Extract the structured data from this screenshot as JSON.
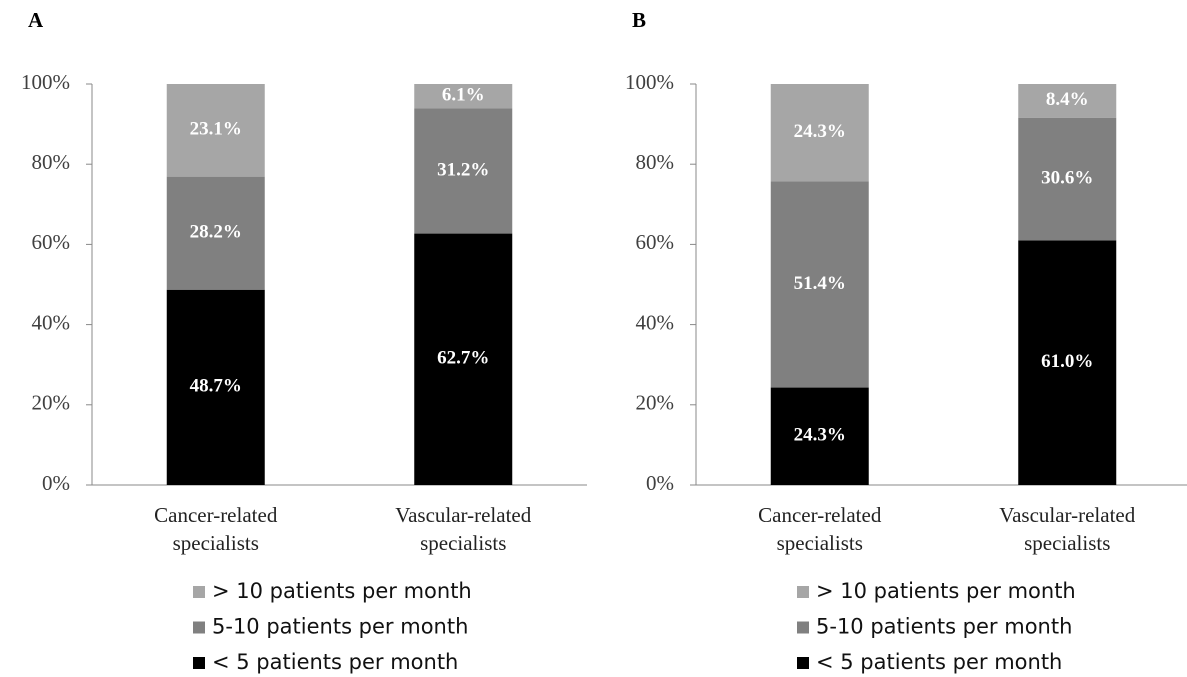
{
  "chart_data": [
    {
      "type": "stacked_bar",
      "title": "A",
      "categories": [
        "Cancer-related specialists",
        "Vascular-related specialists"
      ],
      "series": [
        {
          "name": "< 5 patients per month",
          "color": "#000000",
          "values": [
            48.7,
            62.7
          ],
          "value_labels": [
            "48.7%",
            "62.7%"
          ]
        },
        {
          "name": "5-10 patients per month",
          "color": "#808080",
          "values": [
            28.2,
            31.2
          ],
          "value_labels": [
            "28.2%",
            "31.2%"
          ]
        },
        {
          "name": "> 10 patients per month",
          "color": "#a6a6a6",
          "values": [
            23.1,
            6.1
          ],
          "value_labels": [
            "23.1%",
            "6.1%"
          ]
        }
      ],
      "ylim": [
        0,
        100
      ],
      "yticks": [
        {
          "value": 0,
          "label": "0%"
        },
        {
          "value": 20,
          "label": "20%"
        },
        {
          "value": 40,
          "label": "40%"
        },
        {
          "value": 60,
          "label": "60%"
        },
        {
          "value": 80,
          "label": "80%"
        },
        {
          "value": 100,
          "label": "100%"
        }
      ],
      "legend": "bottom"
    },
    {
      "type": "stacked_bar",
      "title": "B",
      "categories": [
        "Cancer-related specialists",
        "Vascular-related specialists"
      ],
      "series": [
        {
          "name": "< 5 patients per month",
          "color": "#000000",
          "values": [
            24.3,
            61.0
          ],
          "value_labels": [
            "24.3%",
            "61.0%"
          ]
        },
        {
          "name": "5-10 patients per month",
          "color": "#808080",
          "values": [
            51.4,
            30.6
          ],
          "value_labels": [
            "51.4%",
            "30.6%"
          ]
        },
        {
          "name": "> 10 patients per month",
          "color": "#a6a6a6",
          "values": [
            24.3,
            8.4
          ],
          "value_labels": [
            "24.3%",
            "8.4%"
          ]
        }
      ],
      "ylim": [
        0,
        100
      ],
      "yticks": [
        {
          "value": 0,
          "label": "0%"
        },
        {
          "value": 20,
          "label": "20%"
        },
        {
          "value": 40,
          "label": "40%"
        },
        {
          "value": 60,
          "label": "60%"
        },
        {
          "value": 80,
          "label": "80%"
        },
        {
          "value": 100,
          "label": "100%"
        }
      ],
      "legend": "bottom"
    }
  ]
}
